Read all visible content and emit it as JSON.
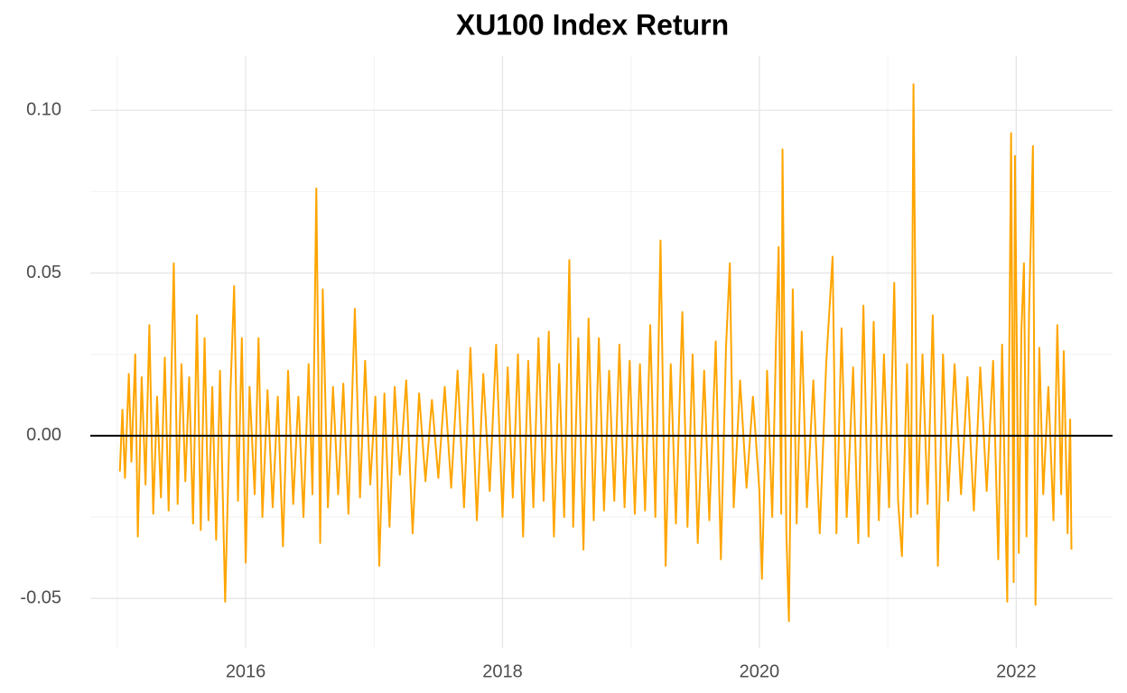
{
  "chart_data": {
    "type": "line",
    "title": "XU100 Index Return",
    "x": [
      2015.02,
      2015.04,
      2015.06,
      2015.09,
      2015.11,
      2015.14,
      2015.16,
      2015.19,
      2015.22,
      2015.25,
      2015.28,
      2015.31,
      2015.34,
      2015.37,
      2015.4,
      2015.44,
      2015.47,
      2015.5,
      2015.53,
      2015.56,
      2015.59,
      2015.62,
      2015.65,
      2015.68,
      2015.71,
      2015.74,
      2015.77,
      2015.8,
      2015.84,
      2015.88,
      2015.91,
      2015.94,
      2015.97,
      2016.0,
      2016.03,
      2016.07,
      2016.1,
      2016.13,
      2016.17,
      2016.21,
      2016.25,
      2016.29,
      2016.33,
      2016.37,
      2016.41,
      2016.45,
      2016.49,
      2016.52,
      2016.55,
      2016.58,
      2016.6,
      2016.64,
      2016.68,
      2016.72,
      2016.76,
      2016.8,
      2016.85,
      2016.89,
      2016.93,
      2016.97,
      2017.01,
      2017.04,
      2017.08,
      2017.12,
      2017.16,
      2017.2,
      2017.25,
      2017.3,
      2017.35,
      2017.4,
      2017.45,
      2017.5,
      2017.55,
      2017.6,
      2017.65,
      2017.7,
      2017.75,
      2017.8,
      2017.85,
      2017.9,
      2017.95,
      2018.0,
      2018.04,
      2018.08,
      2018.12,
      2018.16,
      2018.2,
      2018.24,
      2018.28,
      2018.32,
      2018.36,
      2018.4,
      2018.44,
      2018.48,
      2018.52,
      2018.55,
      2018.59,
      2018.63,
      2018.67,
      2018.71,
      2018.75,
      2018.79,
      2018.83,
      2018.87,
      2018.91,
      2018.95,
      2018.99,
      2019.03,
      2019.07,
      2019.11,
      2019.15,
      2019.19,
      2019.23,
      2019.27,
      2019.31,
      2019.35,
      2019.4,
      2019.44,
      2019.48,
      2019.52,
      2019.57,
      2019.61,
      2019.66,
      2019.7,
      2019.74,
      2019.77,
      2019.8,
      2019.85,
      2019.9,
      2019.95,
      2020.0,
      2020.02,
      2020.06,
      2020.1,
      2020.13,
      2020.15,
      2020.17,
      2020.18,
      2020.21,
      2020.23,
      2020.26,
      2020.29,
      2020.33,
      2020.37,
      2020.42,
      2020.47,
      2020.52,
      2020.57,
      2020.6,
      2020.64,
      2020.68,
      2020.73,
      2020.77,
      2020.81,
      2020.85,
      2020.89,
      2020.93,
      2020.97,
      2021.01,
      2021.05,
      2021.08,
      2021.11,
      2021.15,
      2021.18,
      2021.2,
      2021.23,
      2021.27,
      2021.31,
      2021.35,
      2021.39,
      2021.43,
      2021.47,
      2021.52,
      2021.57,
      2021.62,
      2021.67,
      2021.72,
      2021.77,
      2021.82,
      2021.86,
      2021.89,
      2021.93,
      2021.96,
      2021.98,
      2021.99,
      2022.02,
      2022.04,
      2022.06,
      2022.08,
      2022.1,
      2022.13,
      2022.15,
      2022.18,
      2022.21,
      2022.25,
      2022.29,
      2022.32,
      2022.35,
      2022.37,
      2022.4,
      2022.42,
      2022.43
    ],
    "series": [
      {
        "color": "#FFA500",
        "values": [
          -0.011,
          0.008,
          -0.013,
          0.019,
          -0.008,
          0.025,
          -0.031,
          0.018,
          -0.015,
          0.034,
          -0.024,
          0.012,
          -0.019,
          0.024,
          -0.023,
          0.053,
          -0.021,
          0.022,
          -0.014,
          0.018,
          -0.027,
          0.037,
          -0.029,
          0.03,
          -0.026,
          0.015,
          -0.032,
          0.02,
          -0.051,
          0.012,
          0.046,
          -0.02,
          0.03,
          -0.039,
          0.015,
          -0.018,
          0.03,
          -0.025,
          0.014,
          -0.022,
          0.012,
          -0.034,
          0.02,
          -0.021,
          0.012,
          -0.025,
          0.022,
          -0.018,
          0.076,
          -0.033,
          0.045,
          -0.022,
          0.015,
          -0.018,
          0.016,
          -0.024,
          0.039,
          -0.019,
          0.023,
          -0.015,
          0.012,
          -0.04,
          0.013,
          -0.028,
          0.015,
          -0.012,
          0.017,
          -0.03,
          0.013,
          -0.014,
          0.011,
          -0.013,
          0.015,
          -0.016,
          0.02,
          -0.022,
          0.027,
          -0.026,
          0.019,
          -0.017,
          0.028,
          -0.025,
          0.021,
          -0.019,
          0.025,
          -0.031,
          0.023,
          -0.022,
          0.03,
          -0.02,
          0.032,
          -0.031,
          0.022,
          -0.025,
          0.054,
          -0.028,
          0.03,
          -0.035,
          0.036,
          -0.026,
          0.03,
          -0.023,
          0.02,
          -0.02,
          0.028,
          -0.022,
          0.023,
          -0.024,
          0.022,
          -0.023,
          0.034,
          -0.025,
          0.06,
          -0.04,
          0.022,
          -0.027,
          0.038,
          -0.028,
          0.025,
          -0.033,
          0.02,
          -0.026,
          0.029,
          -0.038,
          0.027,
          0.053,
          -0.022,
          0.017,
          -0.016,
          0.012,
          -0.017,
          -0.044,
          0.02,
          -0.025,
          0.03,
          0.058,
          -0.024,
          0.088,
          -0.03,
          -0.057,
          0.045,
          -0.027,
          0.032,
          -0.022,
          0.017,
          -0.03,
          0.022,
          0.055,
          -0.03,
          0.033,
          -0.025,
          0.021,
          -0.033,
          0.04,
          -0.031,
          0.035,
          -0.026,
          0.025,
          -0.022,
          0.047,
          -0.02,
          -0.037,
          0.022,
          -0.025,
          0.108,
          -0.024,
          0.025,
          -0.021,
          0.037,
          -0.04,
          0.025,
          -0.02,
          0.022,
          -0.018,
          0.018,
          -0.023,
          0.021,
          -0.017,
          0.023,
          -0.038,
          0.028,
          -0.051,
          0.093,
          -0.045,
          0.086,
          -0.036,
          0.032,
          0.053,
          -0.031,
          0.038,
          0.089,
          -0.052,
          0.027,
          -0.018,
          0.015,
          -0.026,
          0.034,
          -0.018,
          0.026,
          -0.03,
          0.005,
          -0.035
        ]
      }
    ],
    "xlim": [
      2014.79,
      2022.75
    ],
    "xticks": [
      2016,
      2018,
      2020,
      2022
    ],
    "xminor": [
      2015,
      2017,
      2019,
      2021
    ],
    "ylim": [
      -0.0652,
      0.1167
    ],
    "yticks": [
      {
        "value": -0.05,
        "label": "-0.05"
      },
      {
        "value": 0,
        "label": "0.00"
      },
      {
        "value": 0.05,
        "label": "0.05"
      },
      {
        "value": 0.1,
        "label": "0.10"
      }
    ],
    "yminor": [
      -0.025,
      0.025,
      0.075
    ],
    "hline": 0,
    "grid": true
  }
}
